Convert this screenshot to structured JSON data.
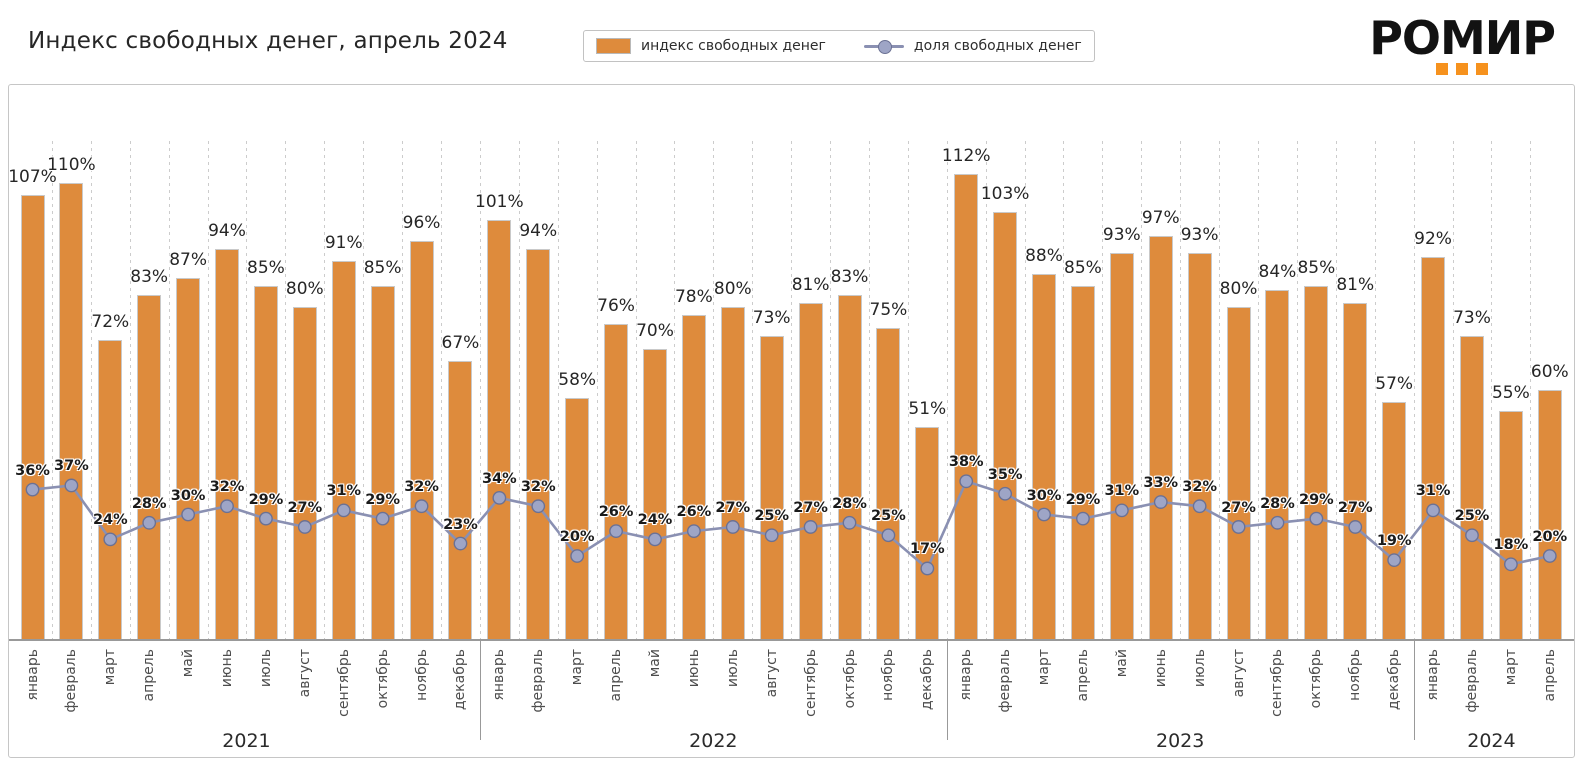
{
  "title": "Индекс свободных денег, апрель 2024",
  "legend": {
    "bar_label": "индекс свободных денег",
    "line_label": "доля свободных денег"
  },
  "logo": {
    "text": "РОМИР"
  },
  "colors": {
    "bar": "#DE8B3C",
    "bar_edge": "#C9C9C9",
    "line": "#8A90B2",
    "marker_fill": "#9EA5C6",
    "marker_edge": "#6B7194",
    "grid": "#CCCCCC",
    "axis": "#999999",
    "separator": "#999999",
    "logo_orange": "#F6921E",
    "logo_black": "#121212"
  },
  "chart_data": {
    "type": "bar+line",
    "title": "Индекс свободных денег, апрель 2024",
    "xlabel": "",
    "ylabel": "",
    "unit": "%",
    "ylim": [
      0,
      120
    ],
    "grid": "vertical-dashed",
    "legend_position": "top-center",
    "series": [
      {
        "name": "индекс свободных денег",
        "type": "bar",
        "key": "index_values"
      },
      {
        "name": "доля свободных денег",
        "type": "line",
        "key": "share_values"
      }
    ],
    "groups": [
      {
        "year": "2021",
        "months": [
          "январь",
          "февраль",
          "март",
          "апрель",
          "май",
          "июнь",
          "июль",
          "август",
          "сентябрь",
          "октябрь",
          "ноябрь",
          "декабрь"
        ],
        "index_values": [
          107,
          110,
          72,
          83,
          87,
          94,
          85,
          80,
          91,
          85,
          96,
          67
        ],
        "share_values": [
          36,
          37,
          24,
          28,
          30,
          32,
          29,
          27,
          31,
          29,
          32,
          23
        ]
      },
      {
        "year": "2022",
        "months": [
          "январь",
          "февраль",
          "март",
          "апрель",
          "май",
          "июнь",
          "июль",
          "август",
          "сентябрь",
          "октябрь",
          "ноябрь",
          "декабрь"
        ],
        "index_values": [
          101,
          94,
          58,
          76,
          70,
          78,
          80,
          73,
          81,
          83,
          75,
          51
        ],
        "share_values": [
          34,
          32,
          20,
          26,
          24,
          26,
          27,
          25,
          27,
          28,
          25,
          17
        ]
      },
      {
        "year": "2023",
        "months": [
          "январь",
          "февраль",
          "март",
          "апрель",
          "май",
          "июнь",
          "июль",
          "август",
          "сентябрь",
          "октябрь",
          "ноябрь",
          "декабрь"
        ],
        "index_values": [
          112,
          103,
          88,
          85,
          93,
          97,
          93,
          80,
          84,
          85,
          81,
          57
        ],
        "share_values": [
          38,
          35,
          30,
          29,
          31,
          33,
          32,
          27,
          28,
          29,
          27,
          19
        ]
      },
      {
        "year": "2024",
        "months": [
          "январь",
          "февраль",
          "март",
          "апрель"
        ],
        "index_values": [
          92,
          73,
          55,
          60
        ],
        "share_values": [
          31,
          25,
          18,
          20
        ]
      }
    ]
  }
}
